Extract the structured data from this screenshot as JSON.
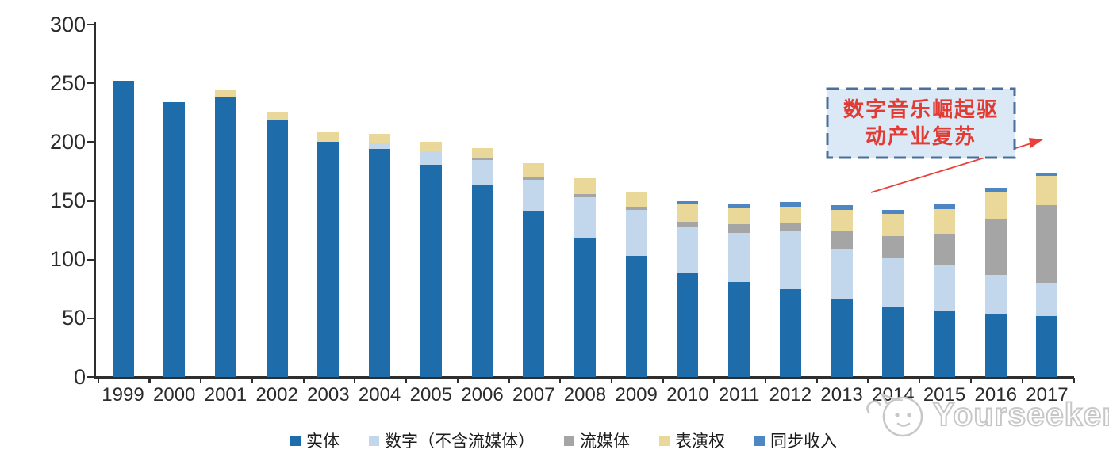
{
  "chart_data": {
    "type": "bar",
    "stacked": true,
    "categories": [
      "1999",
      "2000",
      "2001",
      "2002",
      "2003",
      "2004",
      "2005",
      "2006",
      "2007",
      "2008",
      "2009",
      "2010",
      "2011",
      "2012",
      "2013",
      "2014",
      "2015",
      "2016",
      "2017"
    ],
    "series": [
      {
        "name": "实体",
        "color": "#1f6cab",
        "values": [
          252,
          234,
          238,
          219,
          200,
          194,
          181,
          163,
          141,
          118,
          103,
          88,
          81,
          75,
          66,
          60,
          56,
          54,
          52
        ]
      },
      {
        "name": "数字（不含流媒体）",
        "color": "#c3d7ec",
        "values": [
          0,
          0,
          0,
          0,
          0,
          5,
          11,
          22,
          27,
          35,
          39,
          40,
          42,
          49,
          43,
          41,
          39,
          33,
          28
        ]
      },
      {
        "name": "流媒体",
        "color": "#a5a5a5",
        "values": [
          0,
          0,
          0,
          0,
          0,
          0,
          0,
          1,
          2,
          3,
          3,
          4,
          7,
          7,
          15,
          19,
          27,
          47,
          66
        ]
      },
      {
        "name": "表演权",
        "color": "#e9d89a",
        "values": [
          0,
          0,
          6,
          7,
          8,
          8,
          8,
          9,
          12,
          13,
          13,
          15,
          14,
          14,
          18,
          19,
          21,
          24,
          25
        ]
      },
      {
        "name": "同步收入",
        "color": "#4e86c4",
        "values": [
          0,
          0,
          0,
          0,
          0,
          0,
          0,
          0,
          0,
          0,
          0,
          3,
          3,
          4,
          4,
          3,
          4,
          3,
          3
        ]
      }
    ],
    "title": "",
    "xlabel": "",
    "ylabel": "",
    "ylim": [
      0,
      300
    ],
    "yticks": [
      0,
      50,
      100,
      150,
      200,
      250,
      300
    ],
    "grid": false,
    "legend_position": "bottom"
  },
  "annotation": {
    "line1": "数字音乐崛起驱",
    "line2": "动产业复苏",
    "text_color": "#e23b33",
    "box_fill": "#dbe8f5",
    "border_color": "#4a6f9b",
    "arrow_color": "#e8403a"
  },
  "watermark": {
    "text": "Yourseeker",
    "color": "#c7c7c7"
  }
}
